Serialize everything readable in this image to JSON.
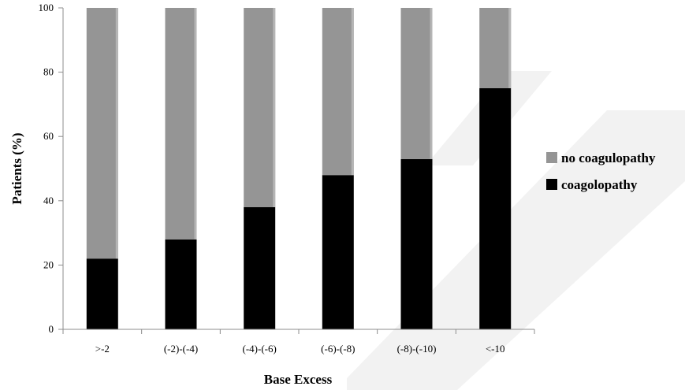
{
  "chart_data": {
    "type": "bar",
    "stacked": true,
    "title": "",
    "xlabel": "Base Excess",
    "ylabel": "Patients (%)",
    "categories": [
      ">-2",
      "(-2)-(-4)",
      "(-4)-(-6)",
      "(-6)-(-8)",
      "(-8)-(-10)",
      "<-10"
    ],
    "series": [
      {
        "name": "coagolopathy",
        "values": [
          22,
          28,
          38,
          48,
          53,
          75
        ],
        "color": "#000000"
      },
      {
        "name": "no coagulopathy",
        "values": [
          78,
          72,
          62,
          52,
          47,
          25
        ],
        "color": "#959595"
      }
    ],
    "ylim": [
      0,
      100
    ],
    "yticks": [
      0,
      20,
      40,
      60,
      80,
      100
    ],
    "grid": false,
    "legend": {
      "placement": "right",
      "order": [
        "no coagulopathy",
        "coagolopathy"
      ]
    },
    "watermark": {
      "text": "RETRACTED",
      "color": "#f2f2f2"
    }
  }
}
